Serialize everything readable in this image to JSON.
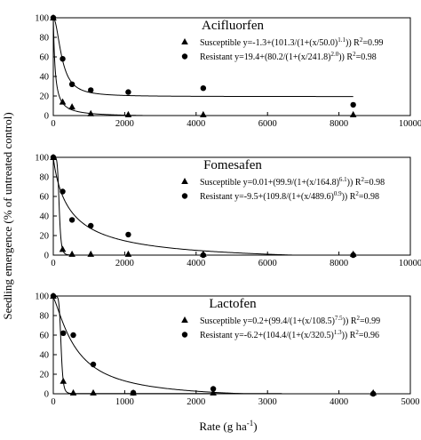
{
  "ylabel": "Seedling emergence (% of untreated control)",
  "xlabel": "Rate (g ha",
  "xlabel_sup": "-1",
  "xlabel_end": ")",
  "chart_data": [
    {
      "type": "scatter",
      "title": "Acifluorfen",
      "xlim": [
        0,
        10000
      ],
      "ylim": [
        0,
        100
      ],
      "xticks": [
        "0",
        "2000",
        "4000",
        "6000",
        "8000",
        "10000"
      ],
      "yticks": [
        "0",
        "20",
        "40",
        "60",
        "80",
        "100"
      ],
      "series": [
        {
          "name": "Susceptible",
          "marker": "triangle",
          "eq_pre": "y=-1.3+(101.3/(1+(x/50.0)",
          "eq_exp": "1.1",
          "eq_post": "))",
          "r2": "=0.99",
          "curve": {
            "c": -1.3,
            "d": 101.3,
            "e": 50.0,
            "b": 1.1
          },
          "x": [
            0,
            262,
            525,
            1050,
            2100,
            4200,
            8400
          ],
          "y": [
            100,
            14,
            9,
            2,
            1,
            1,
            1
          ]
        },
        {
          "name": "Resistant",
          "marker": "circle",
          "eq_pre": "y=19.4+(80.2/(1+(x/241.8)",
          "eq_exp": "2.0",
          "eq_post": "))",
          "r2": "=0.98",
          "curve": {
            "c": 19.4,
            "d": 80.2,
            "e": 241.8,
            "b": 2.0
          },
          "x": [
            0,
            262,
            525,
            1050,
            2100,
            4200,
            8400
          ],
          "y": [
            100,
            58,
            32,
            26,
            24,
            28,
            11
          ]
        }
      ]
    },
    {
      "type": "scatter",
      "title": "Fomesafen",
      "xlim": [
        0,
        10000
      ],
      "ylim": [
        0,
        100
      ],
      "xticks": [
        "0",
        "2000",
        "4000",
        "6000",
        "8000",
        "10000"
      ],
      "yticks": [
        "0",
        "20",
        "40",
        "60",
        "80",
        "100"
      ],
      "series": [
        {
          "name": "Susceptible",
          "marker": "triangle",
          "eq_pre": "y=0.01+(99.9/(1+(x/164.8)",
          "eq_exp": "6.1",
          "eq_post": "))",
          "r2": "=0.98",
          "curve": {
            "c": 0.01,
            "d": 99.9,
            "e": 164.8,
            "b": 6.1
          },
          "x": [
            0,
            262,
            525,
            1050,
            2100,
            4200,
            8400
          ],
          "y": [
            100,
            6,
            1,
            1,
            1,
            1,
            1
          ]
        },
        {
          "name": "Resistant",
          "marker": "circle",
          "eq_pre": "y=-9.5+(109.8/(1+(x/489.6)",
          "eq_exp": "0.9",
          "eq_post": "))",
          "r2": "=0.98",
          "curve": {
            "c": -9.5,
            "d": 109.8,
            "e": 489.6,
            "b": 0.9
          },
          "x": [
            0,
            262,
            525,
            1050,
            2100,
            4200,
            8400
          ],
          "y": [
            100,
            65,
            36,
            30,
            21,
            0,
            0
          ]
        }
      ]
    },
    {
      "type": "scatter",
      "title": "Lactofen",
      "xlim": [
        0,
        5000
      ],
      "ylim": [
        0,
        100
      ],
      "xticks": [
        "0",
        "1000",
        "2000",
        "3000",
        "4000",
        "5000"
      ],
      "yticks": [
        "0",
        "20",
        "40",
        "60",
        "80",
        "100"
      ],
      "series": [
        {
          "name": "Susceptible",
          "marker": "triangle",
          "eq_pre": "y=0.2+(99.4/(1+(x/108.5)",
          "eq_exp": "7.5",
          "eq_post": "))",
          "r2": "=0.99",
          "curve": {
            "c": 0.2,
            "d": 99.4,
            "e": 108.5,
            "b": 7.5
          },
          "x": [
            0,
            140,
            280,
            560,
            1120,
            2240,
            4480
          ],
          "y": [
            100,
            13,
            1,
            1,
            1,
            1,
            1
          ]
        },
        {
          "name": "Resistant",
          "marker": "circle",
          "eq_pre": "y=-6.2+(104.4/(1+(x/320.5)",
          "eq_exp": "1.3",
          "eq_post": "))",
          "r2": "=0.96",
          "curve": {
            "c": -6.2,
            "d": 104.4,
            "e": 320.5,
            "b": 1.3
          },
          "x": [
            0,
            140,
            280,
            560,
            1120,
            2240,
            4480
          ],
          "y": [
            100,
            62,
            60,
            30,
            1,
            5,
            0
          ]
        }
      ]
    }
  ]
}
